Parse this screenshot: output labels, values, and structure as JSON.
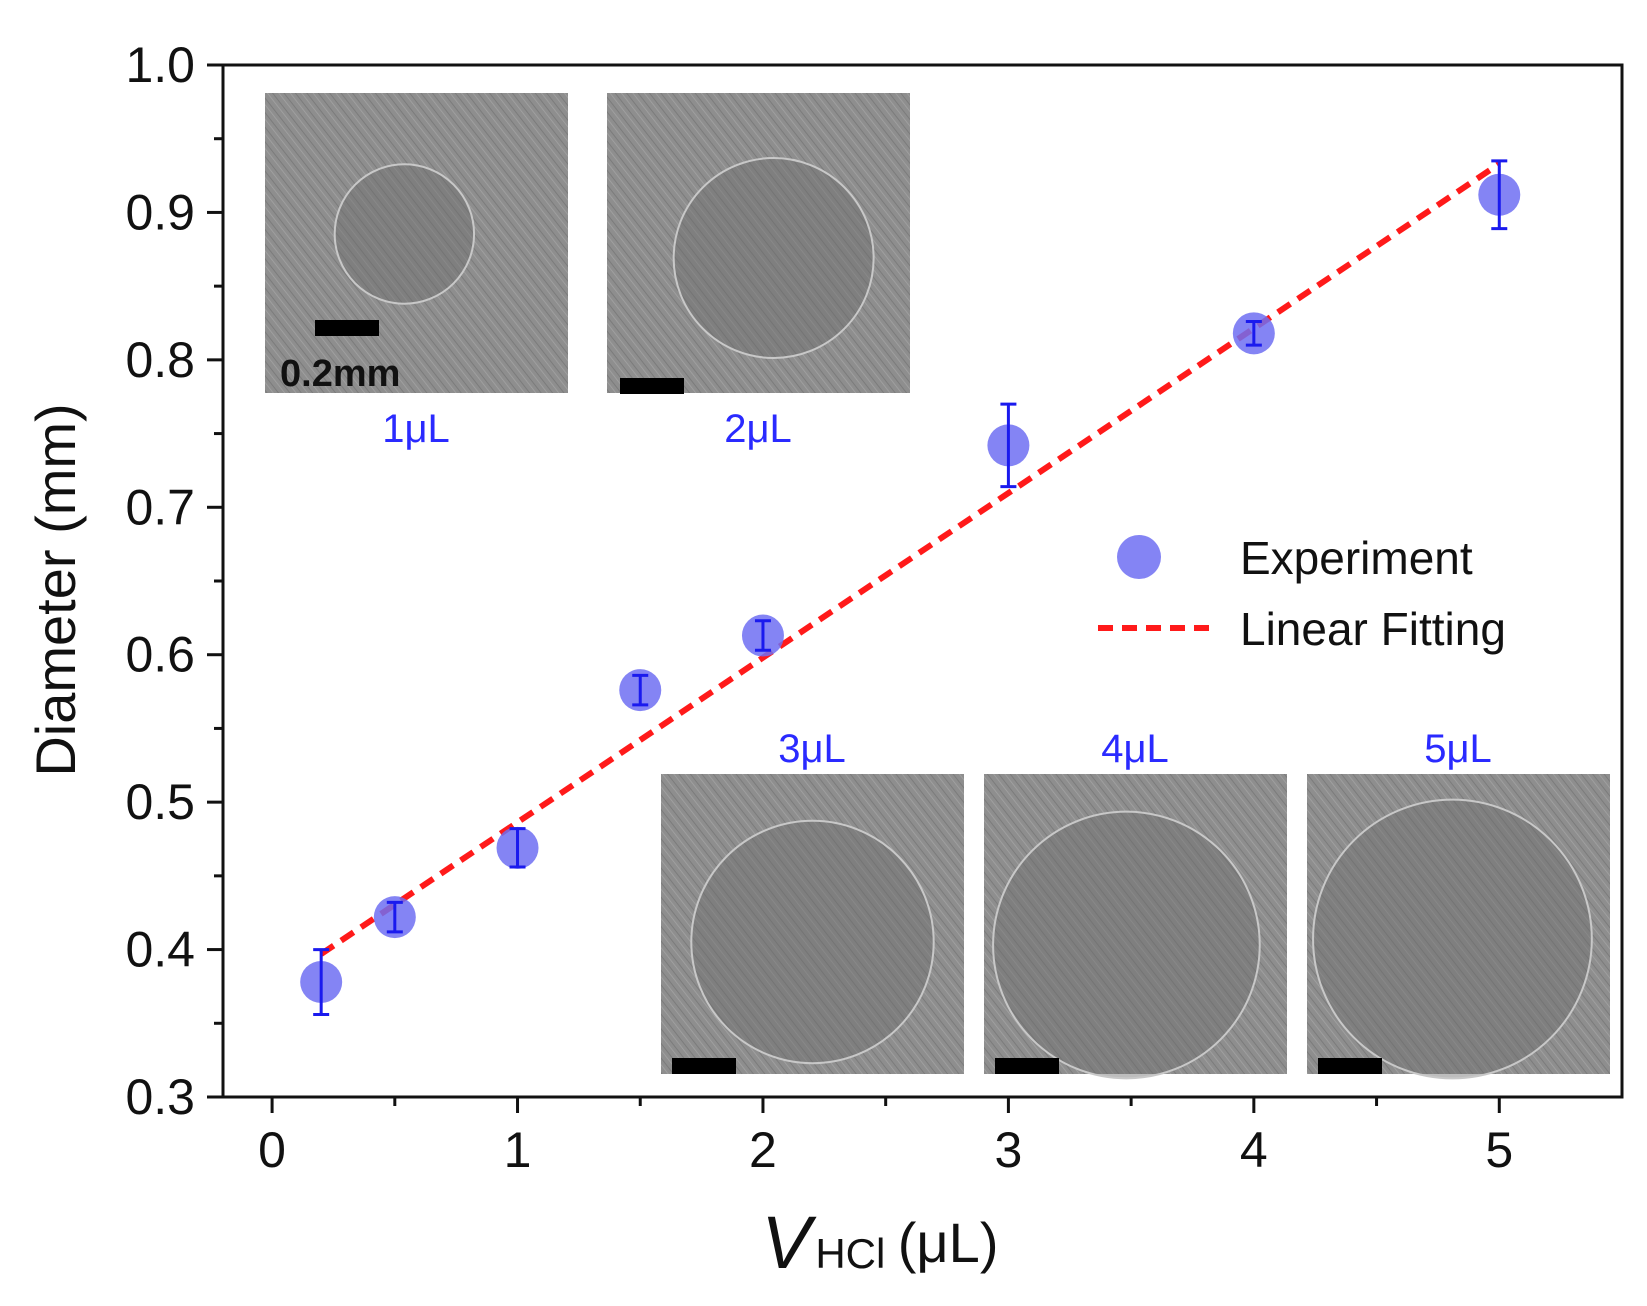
{
  "chart_data": {
    "type": "scatter",
    "xlabel_symbol": "V",
    "xlabel_subscript": "HCl",
    "xlabel_unit": "(μL)",
    "ylabel": "Diameter (mm)",
    "xlim": [
      -0.2,
      5.5
    ],
    "ylim": [
      0.3,
      1.0
    ],
    "xticks": [
      0,
      1,
      2,
      3,
      4,
      5
    ],
    "yticks": [
      0.3,
      0.4,
      0.5,
      0.6,
      0.7,
      0.8,
      0.9,
      1.0
    ],
    "ytick_labels": [
      "0.3",
      "0.4",
      "0.5",
      "0.6",
      "0.7",
      "0.8",
      "0.9",
      "1.0"
    ],
    "grid": false,
    "legend_position": "center-right",
    "series": [
      {
        "name": "Experiment",
        "kind": "points-with-error-bars",
        "color": "#6e6ef2",
        "error_color": "#1a1aee",
        "x": [
          0.2,
          0.5,
          1.0,
          1.5,
          2.0,
          3.0,
          4.0,
          5.0
        ],
        "y": [
          0.378,
          0.422,
          0.469,
          0.576,
          0.613,
          0.742,
          0.818,
          0.912
        ],
        "yerr": [
          0.022,
          0.01,
          0.013,
          0.01,
          0.01,
          0.028,
          0.008,
          0.023
        ]
      },
      {
        "name": "Linear Fitting",
        "kind": "dashed-line",
        "color": "#ff1a1a",
        "x": [
          0.2,
          5.0
        ],
        "y": [
          0.397,
          0.933
        ]
      }
    ],
    "insets": [
      {
        "label": "1μL",
        "scale_text": "0.2mm",
        "circle_ratio": 0.23
      },
      {
        "label": "2μL",
        "scale_text": "",
        "circle_ratio": 0.33
      },
      {
        "label": "3μL",
        "scale_text": "",
        "circle_ratio": 0.4
      },
      {
        "label": "4μL",
        "scale_text": "",
        "circle_ratio": 0.44
      },
      {
        "label": "5μL",
        "scale_text": "",
        "circle_ratio": 0.46
      }
    ]
  }
}
